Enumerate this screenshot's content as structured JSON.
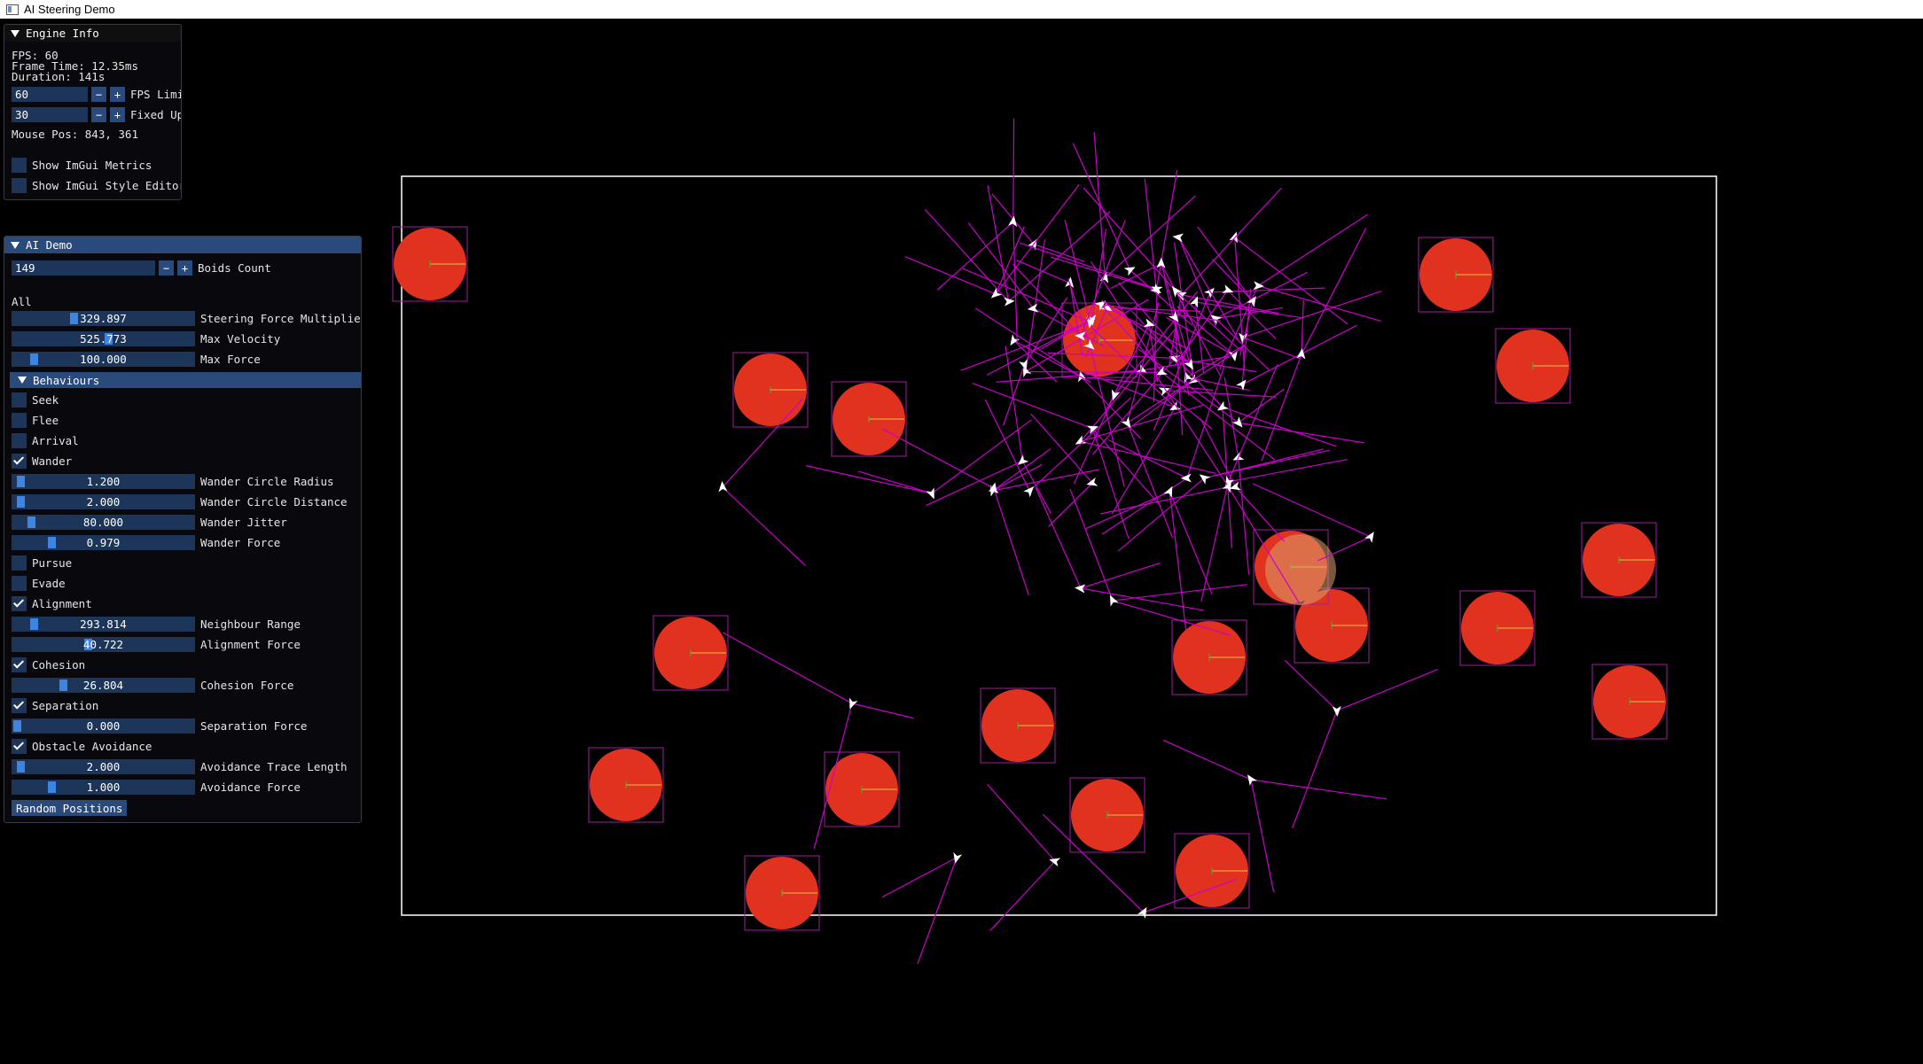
{
  "window": {
    "title": "AI Steering Demo"
  },
  "engine_info": {
    "title": "Engine Info",
    "fps_text": "FPS: 60",
    "frame_time_text": "Frame Time: 12.35ms",
    "duration_text": "Duration: 141s",
    "fps_limit": {
      "value": "60",
      "minus": "−",
      "plus": "+",
      "label": "FPS Limi"
    },
    "fixed_update": {
      "value": "30",
      "minus": "−",
      "plus": "+",
      "label": "Fixed Up"
    },
    "mouse_pos_text": "Mouse Pos: 843, 361",
    "show_metrics": {
      "label": "Show ImGui Metrics",
      "checked": false
    },
    "show_style_editor": {
      "label": "Show ImGui Style Editor",
      "checked": false
    }
  },
  "ai_demo": {
    "title": "AI Demo",
    "boids_count": {
      "value": "149",
      "minus": "−",
      "plus": "+",
      "label": "Boids Count"
    },
    "group_label": "All",
    "steering_force_multiplier": {
      "value": "329.897",
      "label": "Steering Force Multiplier",
      "fraction": 0.33
    },
    "max_velocity": {
      "value": "525.773",
      "label": "Max Velocity",
      "fraction": 0.53
    },
    "max_force": {
      "value": "100.000",
      "label": "Max Force",
      "fraction": 0.1
    },
    "behaviours_header": "Behaviours",
    "seek": {
      "label": "Seek",
      "checked": false
    },
    "flee": {
      "label": "Flee",
      "checked": false
    },
    "arrival": {
      "label": "Arrival",
      "checked": false
    },
    "wander": {
      "label": "Wander",
      "checked": true
    },
    "wander_circle_radius": {
      "value": "1.200",
      "label": "Wander Circle Radius",
      "fraction": 0.02
    },
    "wander_circle_distance": {
      "value": "2.000",
      "label": "Wander Circle Distance",
      "fraction": 0.02
    },
    "wander_jitter": {
      "value": "80.000",
      "label": "Wander Jitter",
      "fraction": 0.08
    },
    "wander_force": {
      "value": "0.979",
      "label": "Wander Force",
      "fraction": 0.2
    },
    "pursue": {
      "label": "Pursue",
      "checked": false
    },
    "evade": {
      "label": "Evade",
      "checked": false
    },
    "alignment": {
      "label": "Alignment",
      "checked": true
    },
    "neighbour_range": {
      "value": "293.814",
      "label": "Neighbour Range",
      "fraction": 0.1
    },
    "alignment_force": {
      "value": "40.722",
      "label": "Alignment Force",
      "fraction": 0.41
    },
    "cohesion": {
      "label": "Cohesion",
      "checked": true
    },
    "cohesion_force": {
      "value": "26.804",
      "label": "Cohesion Force",
      "fraction": 0.27
    },
    "separation": {
      "label": "Separation",
      "checked": true
    },
    "separation_force": {
      "value": "0.000",
      "label": "Separation Force",
      "fraction": 0
    },
    "obstacle_avoidance": {
      "label": "Obstacle Avoidance",
      "checked": true
    },
    "avoidance_trace_length": {
      "value": "2.000",
      "label": "Avoidance Trace Length",
      "fraction": 0.02
    },
    "avoidance_force": {
      "value": "1.000",
      "label": "Avoidance Force",
      "fraction": 0.2
    },
    "random_positions_label": "Random Positions"
  },
  "colors": {
    "obstacle": "#e0321e",
    "boid": "#ffffff",
    "trace": "#cc00cc",
    "bounds": "#ffffff",
    "ui_frame": "#1c3558",
    "ui_accent": "#294a7a",
    "slider_grab": "#3d85e0"
  }
}
